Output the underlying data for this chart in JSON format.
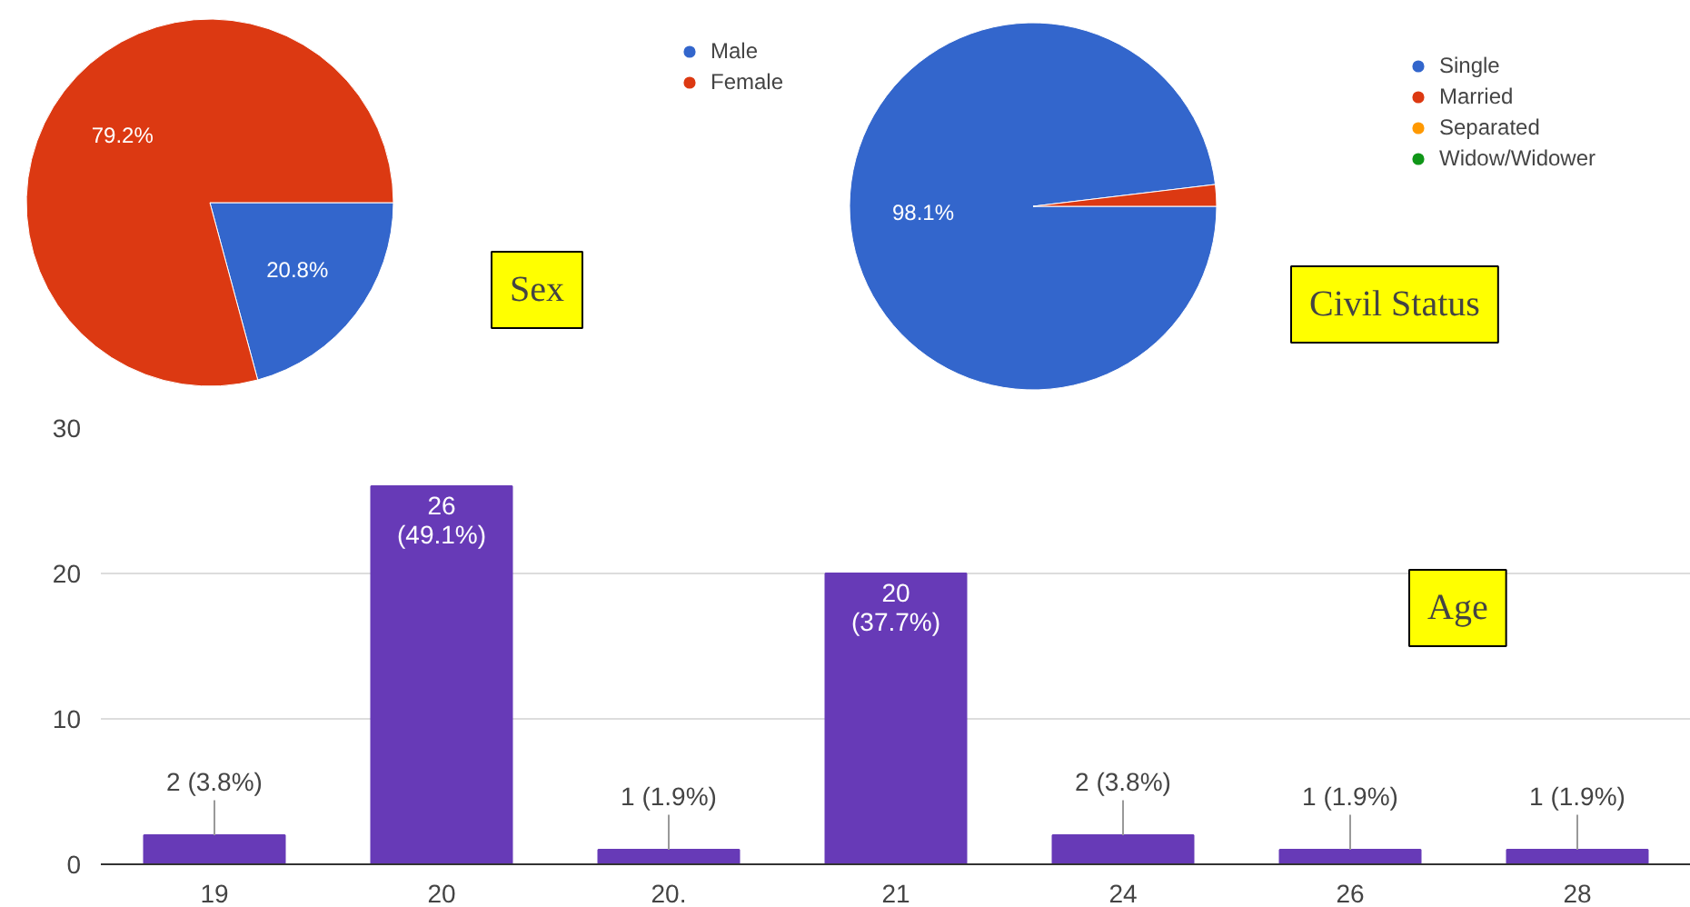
{
  "chart_data": [
    {
      "type": "pie",
      "title": "Sex",
      "categories": [
        "Male",
        "Female"
      ],
      "values": [
        20.8,
        79.2
      ],
      "colors": [
        "#3366cc",
        "#dc3912"
      ],
      "value_labels": [
        "20.8%",
        "79.2%"
      ],
      "legend": "right"
    },
    {
      "type": "pie",
      "title": "Civil Status",
      "categories": [
        "Single",
        "Married",
        "Separated",
        "Widow/Widower"
      ],
      "values": [
        98.1,
        1.9,
        0,
        0
      ],
      "colors": [
        "#3366cc",
        "#dc3912",
        "#ff9900",
        "#109618"
      ],
      "value_labels": [
        "98.1%",
        null,
        null,
        null
      ],
      "legend": "right"
    },
    {
      "type": "bar",
      "title": "Age",
      "categories": [
        "19",
        "20",
        "20.",
        "21",
        "24",
        "26",
        "28"
      ],
      "values": [
        2,
        26,
        1,
        20,
        2,
        1,
        1
      ],
      "color": "#673ab7",
      "value_labels": [
        "2 (3.8%)",
        "26\n(49.1%)",
        "1 (1.9%)",
        "20\n(37.7%)",
        "2 (3.8%)",
        "1 (1.9%)",
        "1 (1.9%)"
      ],
      "ylim": [
        0,
        30
      ],
      "yticks": [
        0,
        10,
        20,
        30
      ],
      "grid": "y"
    }
  ]
}
